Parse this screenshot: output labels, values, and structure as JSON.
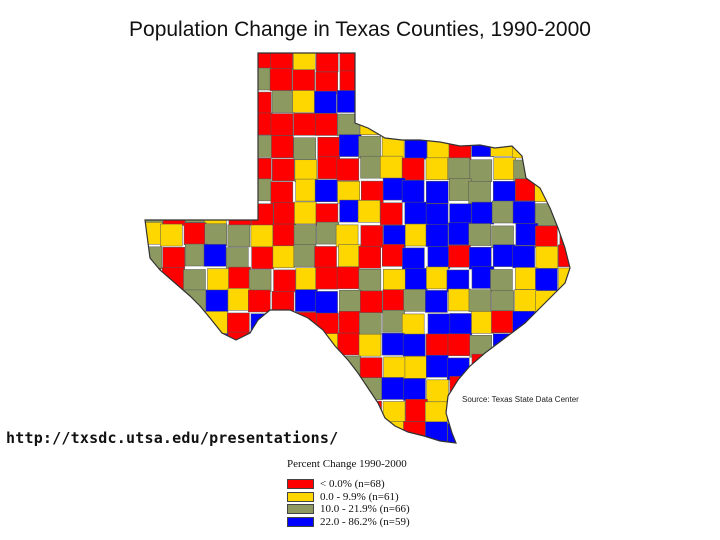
{
  "title": "Population Change in Texas Counties, 1990-2000",
  "source": "Source: Texas State Data Center",
  "url": "http://txsdc.utsa.edu/presentations/",
  "legend": {
    "title": "Percent Change 1990-2000",
    "items": [
      {
        "label": "< 0.0% (n=68)",
        "color": "#ff0000"
      },
      {
        "label": "0.0 - 9.9% (n=61)",
        "color": "#ffd700"
      },
      {
        "label": "10.0 - 21.9% (n=66)",
        "color": "#8c9a62"
      },
      {
        "label": "22.0 - 86.2% (n=59)",
        "color": "#0000ff"
      }
    ]
  },
  "colors": {
    "decline": "#ff0000",
    "low": "#ffd700",
    "mid": "#8c9a62",
    "high": "#0000ff",
    "border": "#555555"
  }
}
